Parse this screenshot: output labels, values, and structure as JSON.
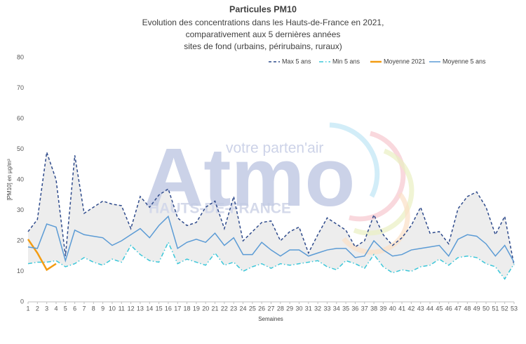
{
  "chart_data": {
    "type": "line",
    "title": "Particules PM10",
    "subtitle": [
      "Evolution des concentrations dans les Hauts-de-France en 2021,",
      "comparativement aux 5 dernières années",
      "sites de fond (urbains, périrubains, ruraux)"
    ],
    "x_label": "Semaines",
    "y_label": "[PM10] en µg/m³",
    "watermark": [
      "votre parten'air",
      "HAUTS-DE-FRANCE",
      "Atmo"
    ],
    "x": [
      1,
      2,
      3,
      4,
      5,
      6,
      7,
      8,
      9,
      10,
      11,
      12,
      13,
      14,
      15,
      16,
      17,
      18,
      19,
      20,
      21,
      22,
      23,
      24,
      25,
      26,
      27,
      28,
      29,
      30,
      31,
      32,
      33,
      34,
      35,
      36,
      37,
      38,
      39,
      40,
      41,
      42,
      43,
      44,
      45,
      46,
      47,
      48,
      49,
      50,
      51,
      52,
      53
    ],
    "xlim": [
      1,
      53
    ],
    "xticks": [
      1,
      2,
      3,
      4,
      5,
      6,
      7,
      8,
      9,
      10,
      11,
      12,
      13,
      14,
      15,
      16,
      17,
      18,
      19,
      20,
      21,
      22,
      23,
      24,
      25,
      26,
      27,
      28,
      29,
      30,
      31,
      32,
      33,
      34,
      35,
      36,
      37,
      38,
      39,
      40,
      41,
      42,
      43,
      44,
      45,
      46,
      47,
      48,
      49,
      50,
      51,
      52,
      53
    ],
    "ylim": [
      0,
      80
    ],
    "yticks": [
      0,
      10,
      20,
      30,
      40,
      50,
      60,
      70,
      80
    ],
    "grid": false,
    "legend": "top-right",
    "series": [
      {
        "name": "Max 5 ans",
        "color": "#2f4b8c",
        "dash": "dashed",
        "values": [
          23,
          27,
          49,
          40,
          15,
          48,
          29,
          31,
          33,
          32,
          31.5,
          24,
          34.5,
          31,
          35,
          37,
          27.5,
          25,
          26,
          31,
          33,
          24,
          34.5,
          20,
          23,
          26,
          26.5,
          20,
          23,
          24.5,
          16,
          22,
          27.5,
          25.5,
          23.5,
          18,
          20,
          28.5,
          22,
          18.5,
          21,
          25,
          31,
          22.5,
          23,
          19,
          30.5,
          34.5,
          36,
          31,
          22,
          28,
          12
        ]
      },
      {
        "name": "Min 5 ans",
        "color": "#3cc7d9",
        "dash": "dashdot",
        "values": [
          12.5,
          13,
          13,
          13.5,
          11.5,
          12.5,
          14.5,
          13,
          12,
          14,
          13,
          18.5,
          15.5,
          13.5,
          13,
          19.5,
          12.5,
          14,
          13,
          12,
          16,
          12,
          13,
          10,
          11.5,
          12.5,
          11,
          12.5,
          12,
          12.5,
          13,
          13.5,
          11.5,
          10.5,
          13.5,
          12.5,
          11,
          15.5,
          11.5,
          9.5,
          10.5,
          10,
          11.5,
          12,
          14,
          12,
          14.5,
          15,
          14.5,
          12.5,
          11.5,
          7.5,
          12.5
        ]
      },
      {
        "name": "Moyenne 2021",
        "color": "#f39c12",
        "dash": "solid",
        "values": [
          20.5,
          16,
          10.5,
          12.5,
          null,
          null,
          null,
          null,
          null,
          null,
          null,
          null,
          null,
          null,
          null,
          null,
          null,
          null,
          null,
          null,
          null,
          null,
          null,
          null,
          null,
          null,
          null,
          null,
          null,
          null,
          null,
          null,
          null,
          null,
          null,
          null,
          null,
          null,
          null,
          null,
          null,
          null,
          null,
          null,
          null,
          null,
          null,
          null,
          null,
          null,
          null,
          null,
          null
        ]
      },
      {
        "name": "Moyenne 5 ans",
        "color": "#5b9bd5",
        "dash": "solid",
        "values": [
          18,
          17.5,
          25.5,
          24.5,
          13.5,
          23.5,
          22,
          21.5,
          21,
          18.5,
          20,
          22,
          24,
          21,
          25,
          28,
          17.5,
          19.5,
          20.5,
          19.5,
          22.5,
          18.5,
          21,
          15.5,
          15.5,
          19.5,
          17,
          15,
          17,
          17,
          15,
          16,
          17,
          17.5,
          17.5,
          14.5,
          15,
          20,
          17,
          15,
          15.5,
          17,
          17.5,
          18,
          18.5,
          15,
          20.5,
          22,
          21.5,
          19,
          15,
          18.5,
          13
        ]
      }
    ]
  }
}
